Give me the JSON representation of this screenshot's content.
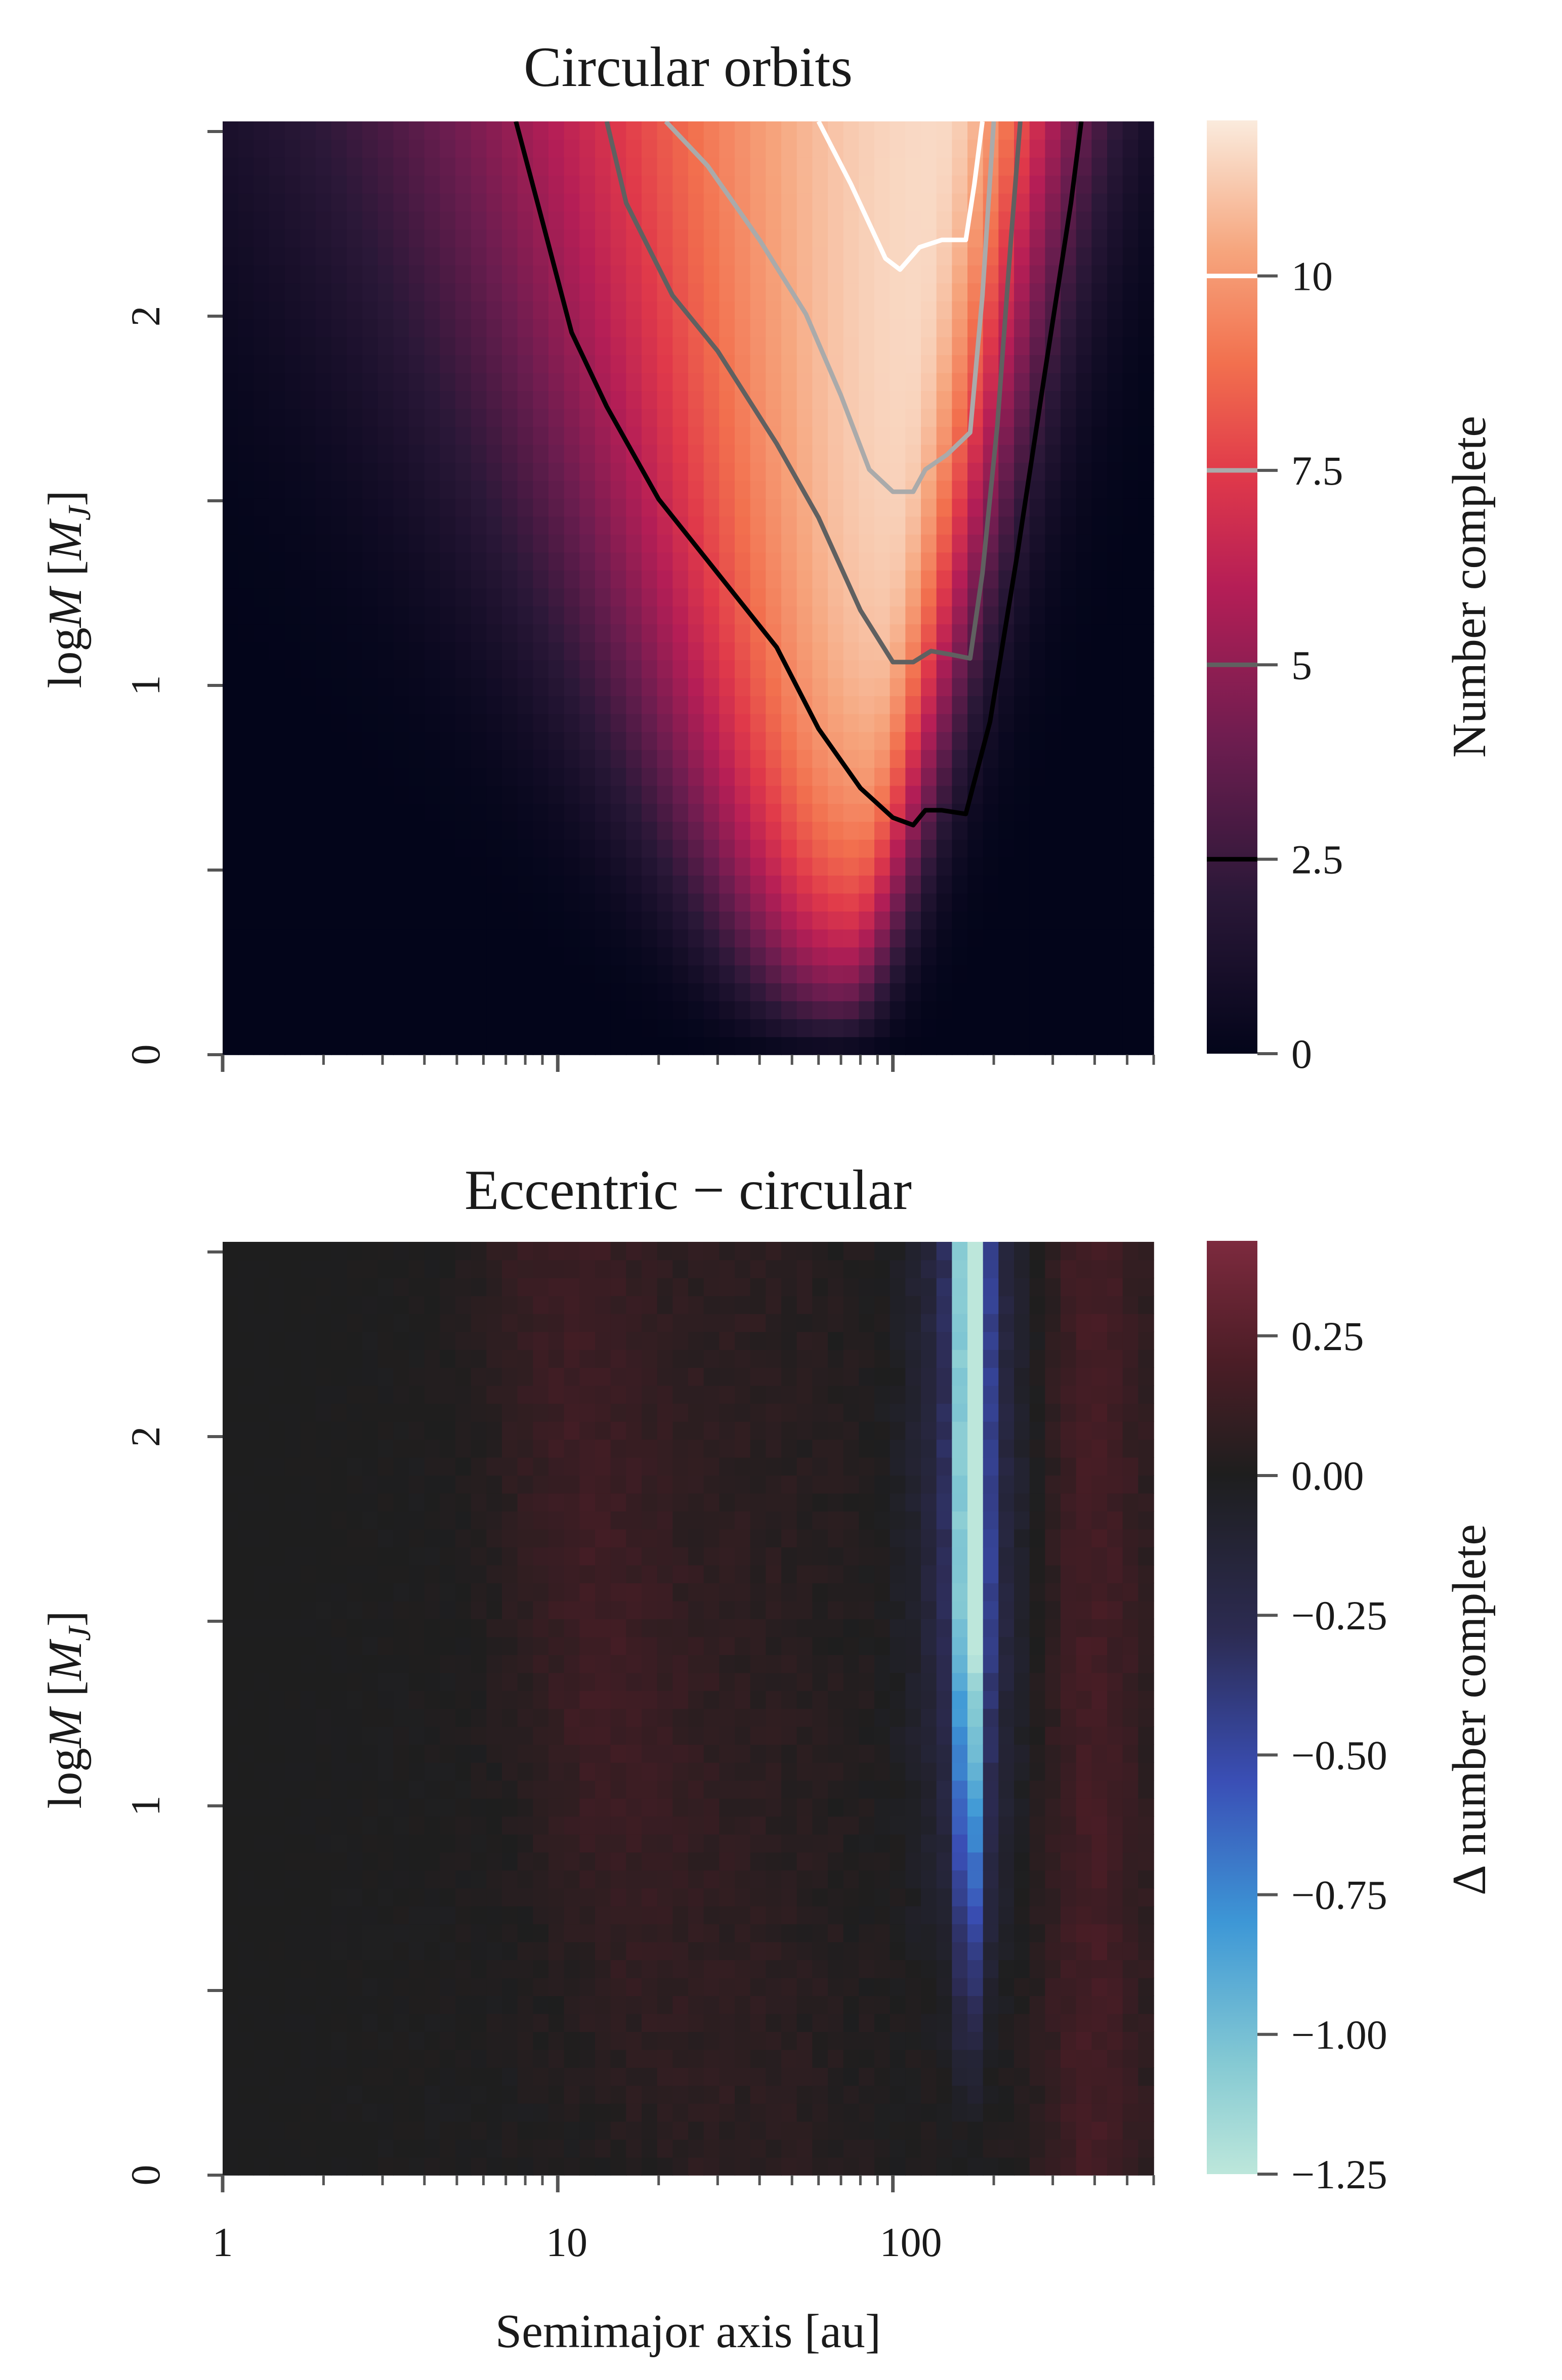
{
  "figure": {
    "xlabel": "Semimajor axis [au]"
  },
  "chart_data": [
    {
      "type": "heatmap",
      "title": "Circular orbits",
      "xlabel": "Semimajor axis [au]",
      "xscale": "log",
      "xlim": [
        1,
        600
      ],
      "ylabel": "log M [M_J]",
      "ylabel_parts": {
        "pre": "log",
        "var": "M",
        "bracket_open": " [",
        "sub_var": "M",
        "sub": "J",
        "bracket_close": "]"
      },
      "ylim": [
        0,
        2.52
      ],
      "x_ticks": [
        "1",
        "10",
        "100"
      ],
      "y_ticks": [
        "0",
        "1",
        "2"
      ],
      "colorbar": {
        "label": "Number complete",
        "range": [
          0,
          12
        ],
        "ticks": [
          "0",
          "2.5",
          "5",
          "7.5",
          "10"
        ],
        "tick_values": [
          0,
          2.5,
          5,
          7.5,
          10
        ],
        "colormap": "rocket"
      },
      "contours": [
        {
          "level": 2.5,
          "color": "#000000",
          "left": [
            [
              7.5,
              2.52
            ],
            [
              9,
              2.25
            ],
            [
              11,
              1.95
            ],
            [
              14,
              1.75
            ],
            [
              20,
              1.5
            ],
            [
              30,
              1.3
            ],
            [
              45,
              1.1
            ],
            [
              60,
              0.88
            ],
            [
              80,
              0.72
            ],
            [
              100,
              0.64
            ],
            [
              115,
              0.62
            ],
            [
              125,
              0.66
            ],
            [
              140,
              0.66
            ],
            [
              165,
              0.65
            ]
          ],
          "right": [
            [
              165,
              0.65
            ],
            [
              195,
              0.9
            ],
            [
              235,
              1.35
            ],
            [
              285,
              1.85
            ],
            [
              340,
              2.3
            ],
            [
              365,
              2.52
            ]
          ]
        },
        {
          "level": 5,
          "color": "#606060",
          "left": [
            [
              14,
              2.52
            ],
            [
              16,
              2.3
            ],
            [
              22,
              2.05
            ],
            [
              30,
              1.9
            ],
            [
              45,
              1.65
            ],
            [
              60,
              1.45
            ],
            [
              80,
              1.2
            ],
            [
              100,
              1.06
            ],
            [
              115,
              1.06
            ],
            [
              130,
              1.09
            ],
            [
              150,
              1.08
            ],
            [
              170,
              1.07
            ]
          ],
          "right": [
            [
              170,
              1.07
            ],
            [
              185,
              1.3
            ],
            [
              205,
              1.7
            ],
            [
              225,
              2.2
            ],
            [
              240,
              2.52
            ]
          ]
        },
        {
          "level": 7.5,
          "color": "#aaaaaa",
          "left": [
            [
              21,
              2.52
            ],
            [
              28,
              2.4
            ],
            [
              40,
              2.2
            ],
            [
              55,
              2.0
            ],
            [
              70,
              1.78
            ],
            [
              85,
              1.58
            ],
            [
              100,
              1.52
            ],
            [
              115,
              1.52
            ],
            [
              125,
              1.58
            ],
            [
              145,
              1.62
            ],
            [
              170,
              1.68
            ]
          ],
          "right": [
            [
              170,
              1.68
            ],
            [
              185,
              2.05
            ],
            [
              200,
              2.52
            ]
          ]
        },
        {
          "level": 10,
          "color": "#ffffff",
          "left": [
            [
              60,
              2.52
            ],
            [
              75,
              2.35
            ],
            [
              95,
              2.15
            ],
            [
              105,
              2.12
            ],
            [
              120,
              2.18
            ],
            [
              140,
              2.2
            ],
            [
              165,
              2.2
            ]
          ],
          "right": [
            [
              165,
              2.2
            ],
            [
              175,
              2.35
            ],
            [
              185,
              2.52
            ]
          ]
        }
      ]
    },
    {
      "type": "heatmap",
      "title": "Eccentric − circular",
      "xlabel": "Semimajor axis [au]",
      "xscale": "log",
      "xlim": [
        1,
        600
      ],
      "ylabel": "log M [M_J]",
      "ylabel_parts": {
        "pre": "log",
        "var": "M",
        "bracket_open": " [",
        "sub_var": "M",
        "sub": "J",
        "bracket_close": "]"
      },
      "ylim": [
        0,
        2.52
      ],
      "x_ticks": [
        "1",
        "10",
        "100"
      ],
      "y_ticks": [
        "0",
        "1",
        "2"
      ],
      "colorbar": {
        "label": "Δ number complete",
        "range": [
          -1.25,
          0.42
        ],
        "ticks": [
          "0.25",
          "0.00",
          "−0.25",
          "−0.50",
          "−0.75",
          "−1.00",
          "−1.25"
        ],
        "tick_values": [
          0.25,
          0,
          -0.25,
          -0.5,
          -0.75,
          -1.0,
          -1.25
        ],
        "colormap": "icefire"
      }
    }
  ]
}
